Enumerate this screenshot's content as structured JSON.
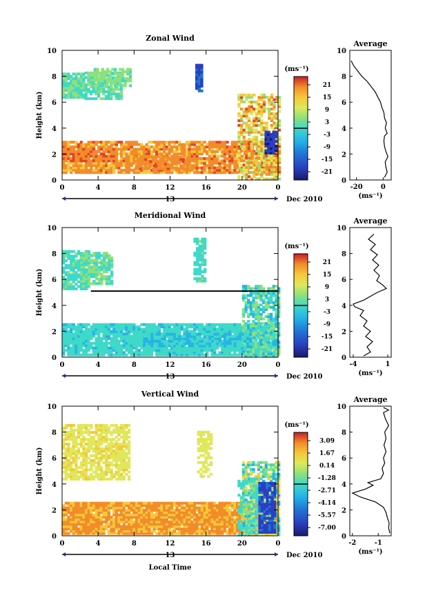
{
  "chart_data": [
    {
      "type": "heatmap",
      "title": "Zonal Wind",
      "ylabel": "Height (km)",
      "ylim": [
        0,
        10
      ],
      "xlim": [
        0,
        24
      ],
      "x_ticks": [
        "0",
        "4",
        "8",
        "12",
        "16",
        "20",
        "0"
      ],
      "y_ticks": [
        "0",
        "2",
        "4",
        "6",
        "8",
        "10"
      ],
      "date_ticks": [
        "13"
      ],
      "date_label": "Dec 2010",
      "colorbar": {
        "unit": "(ms⁻¹)",
        "ticks": [
          "21",
          "15",
          "9",
          "3",
          "-3",
          "-9",
          "-15",
          "-21"
        ]
      },
      "average": {
        "title": "Average",
        "xlabel": "(ms⁻¹)",
        "x_ticks": [
          "-20",
          "0"
        ],
        "xlim": [
          -25,
          6
        ],
        "y_ticks": [
          "0",
          "2",
          "4",
          "6",
          "8",
          "10"
        ],
        "profile": [
          {
            "x": 1.0,
            "y": 0.2
          },
          {
            "x": 3.0,
            "y": 0.6
          },
          {
            "x": 2.0,
            "y": 1.0
          },
          {
            "x": 1.5,
            "y": 1.4
          },
          {
            "x": 3.5,
            "y": 1.8
          },
          {
            "x": 2.0,
            "y": 2.2
          },
          {
            "x": 1.0,
            "y": 2.6
          },
          {
            "x": 0.5,
            "y": 3.0
          },
          {
            "x": 1.0,
            "y": 3.4
          },
          {
            "x": 3.0,
            "y": 3.6
          },
          {
            "x": 1.5,
            "y": 4.0
          },
          {
            "x": 2.5,
            "y": 4.4
          },
          {
            "x": 1.0,
            "y": 4.8
          },
          {
            "x": 0.5,
            "y": 5.2
          },
          {
            "x": -1.0,
            "y": 5.6
          },
          {
            "x": -2.0,
            "y": 6.0
          },
          {
            "x": -4.0,
            "y": 6.4
          },
          {
            "x": -6.0,
            "y": 6.8
          },
          {
            "x": -9.0,
            "y": 7.2
          },
          {
            "x": -12.0,
            "y": 7.6
          },
          {
            "x": -16.0,
            "y": 8.0
          },
          {
            "x": -19.0,
            "y": 8.4
          },
          {
            "x": -22.0,
            "y": 8.8
          },
          {
            "x": -24.0,
            "y": 9.2
          }
        ]
      }
    },
    {
      "type": "heatmap",
      "title": "Meridional Wind",
      "ylabel": "Height (km)",
      "ylim": [
        0,
        10
      ],
      "xlim": [
        0,
        24
      ],
      "x_ticks": [
        "0",
        "4",
        "8",
        "12",
        "16",
        "20",
        "0"
      ],
      "y_ticks": [
        "0",
        "2",
        "4",
        "6",
        "8",
        "10"
      ],
      "date_ticks": [
        "13"
      ],
      "date_label": "Dec 2010",
      "colorbar": {
        "unit": "(ms⁻¹)",
        "ticks": [
          "21",
          "15",
          "9",
          "3",
          "-3",
          "-9",
          "-15",
          "-21"
        ]
      },
      "average": {
        "title": "Average",
        "xlabel": "(ms⁻¹)",
        "x_ticks": [
          "-4",
          "1"
        ],
        "xlim": [
          -4.5,
          1.5
        ],
        "y_ticks": [
          "0",
          "2",
          "4",
          "6",
          "8",
          "10"
        ],
        "profile": [
          {
            "x": -2.5,
            "y": 0.1
          },
          {
            "x": -1.5,
            "y": 0.4
          },
          {
            "x": -2.0,
            "y": 0.8
          },
          {
            "x": -1.2,
            "y": 1.2
          },
          {
            "x": -2.2,
            "y": 1.6
          },
          {
            "x": -1.5,
            "y": 2.0
          },
          {
            "x": -2.5,
            "y": 2.4
          },
          {
            "x": -2.0,
            "y": 2.8
          },
          {
            "x": -3.0,
            "y": 3.2
          },
          {
            "x": -2.5,
            "y": 3.6
          },
          {
            "x": -3.8,
            "y": 3.9
          },
          {
            "x": -4.0,
            "y": 4.1
          },
          {
            "x": -2.5,
            "y": 4.4
          },
          {
            "x": -1.5,
            "y": 4.7
          },
          {
            "x": -0.5,
            "y": 5.0
          },
          {
            "x": 0.8,
            "y": 5.3
          },
          {
            "x": 0.2,
            "y": 5.6
          },
          {
            "x": -0.6,
            "y": 5.9
          },
          {
            "x": -0.2,
            "y": 6.3
          },
          {
            "x": -1.0,
            "y": 6.7
          },
          {
            "x": -0.3,
            "y": 7.1
          },
          {
            "x": -1.2,
            "y": 7.5
          },
          {
            "x": -0.5,
            "y": 7.9
          },
          {
            "x": -1.5,
            "y": 8.3
          },
          {
            "x": -0.8,
            "y": 8.7
          },
          {
            "x": -1.8,
            "y": 9.1
          },
          {
            "x": -1.0,
            "y": 9.5
          }
        ]
      }
    },
    {
      "type": "heatmap",
      "title": "Vertical Wind",
      "ylabel": "Height (km)",
      "xlabel": "Local Time",
      "ylim": [
        0,
        10
      ],
      "xlim": [
        0,
        24
      ],
      "x_ticks": [
        "0",
        "4",
        "8",
        "12",
        "16",
        "20",
        "0"
      ],
      "y_ticks": [
        "0",
        "2",
        "4",
        "6",
        "8",
        "10"
      ],
      "date_ticks": [
        "13"
      ],
      "date_label": "Dec 2010",
      "colorbar": {
        "unit": "(ms⁻¹)",
        "ticks": [
          "3.09",
          "1.67",
          "0.14",
          "-1.28",
          "-2.71",
          "-4.14",
          "-5.57",
          "-7.00"
        ]
      },
      "average": {
        "title": "Average",
        "xlabel": "(ms⁻¹)",
        "x_ticks": [
          "-2",
          "-1"
        ],
        "xlim": [
          -2.1,
          -0.5
        ],
        "y_ticks": [
          "0",
          "2",
          "4",
          "6",
          "8",
          "10"
        ],
        "profile": [
          {
            "x": -0.55,
            "y": 0.2
          },
          {
            "x": -0.6,
            "y": 0.6
          },
          {
            "x": -0.58,
            "y": 1.0
          },
          {
            "x": -0.65,
            "y": 1.4
          },
          {
            "x": -0.7,
            "y": 1.8
          },
          {
            "x": -0.8,
            "y": 2.2
          },
          {
            "x": -1.1,
            "y": 2.6
          },
          {
            "x": -1.7,
            "y": 3.0
          },
          {
            "x": -2.0,
            "y": 3.3
          },
          {
            "x": -1.5,
            "y": 3.6
          },
          {
            "x": -1.2,
            "y": 3.9
          },
          {
            "x": -1.4,
            "y": 4.1
          },
          {
            "x": -0.9,
            "y": 4.4
          },
          {
            "x": -0.8,
            "y": 4.8
          },
          {
            "x": -0.85,
            "y": 5.2
          },
          {
            "x": -0.75,
            "y": 5.6
          },
          {
            "x": -0.8,
            "y": 6.0
          },
          {
            "x": -0.7,
            "y": 6.5
          },
          {
            "x": -0.78,
            "y": 7.0
          },
          {
            "x": -0.7,
            "y": 7.5
          },
          {
            "x": -0.75,
            "y": 8.0
          },
          {
            "x": -0.6,
            "y": 8.5
          },
          {
            "x": -0.72,
            "y": 9.0
          },
          {
            "x": -0.8,
            "y": 9.5
          },
          {
            "x": -0.6,
            "y": 9.7
          },
          {
            "x": -0.8,
            "y": 9.9
          }
        ]
      }
    }
  ],
  "colors": {
    "scale": [
      "#1a1a6e",
      "#2b3fbf",
      "#1f74d6",
      "#25b4e6",
      "#3fd9c8",
      "#8fe07a",
      "#dfe85a",
      "#f5c83a",
      "#f28c2a",
      "#e2442a",
      "#b81e28"
    ]
  }
}
